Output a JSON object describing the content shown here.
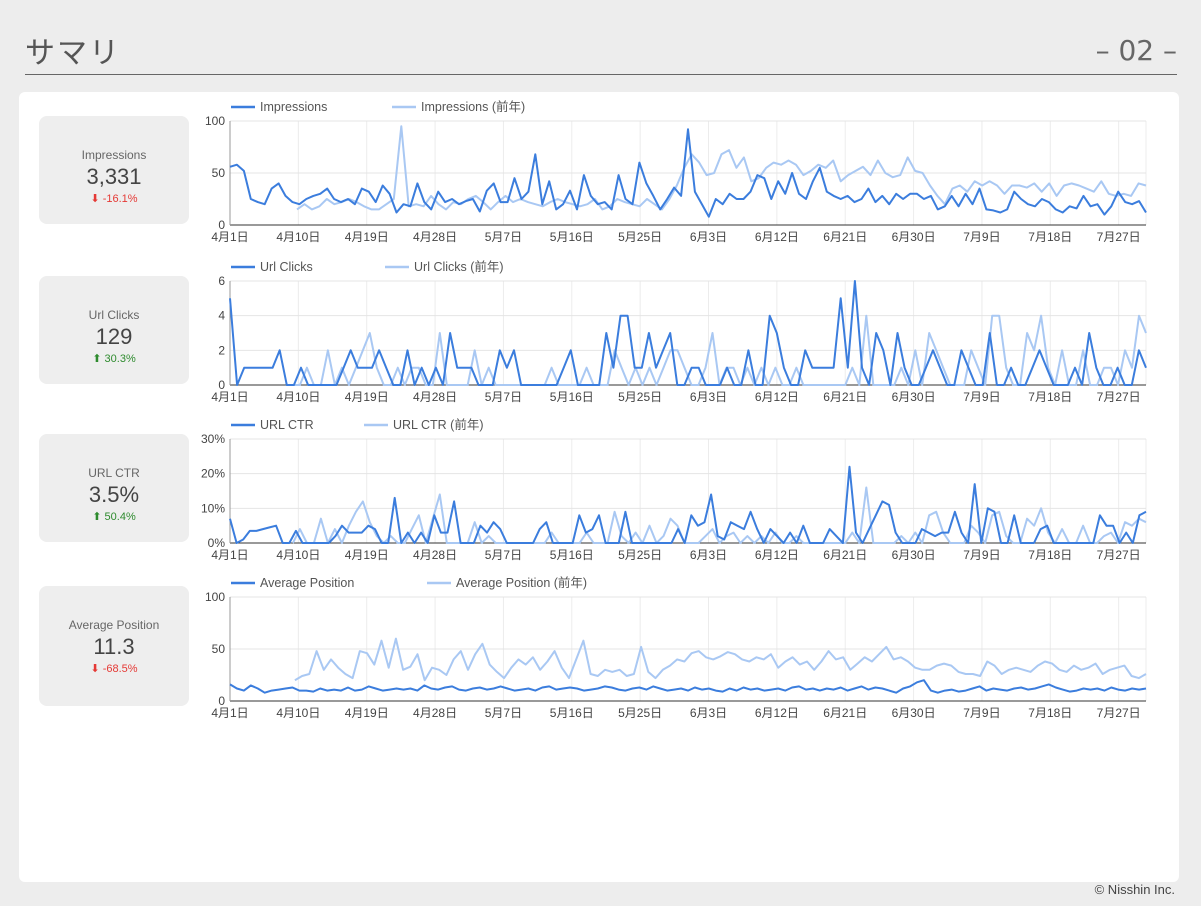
{
  "header": {
    "title": "サマリ",
    "page_number": "– 02 –"
  },
  "footer": {
    "copyright": "© Nisshin Inc."
  },
  "colors": {
    "current": "#3b7ddd",
    "previous": "#a9c8f3",
    "negative": "#e53935",
    "positive": "#2e8b2e"
  },
  "kpis": [
    {
      "label": "Impressions",
      "value": "3,331",
      "delta": "-16.1%",
      "direction": "down"
    },
    {
      "label": "Url Clicks",
      "value": "129",
      "delta": "30.3%",
      "direction": "up"
    },
    {
      "label": "URL CTR",
      "value": "3.5%",
      "delta": "50.4%",
      "direction": "up"
    },
    {
      "label": "Average Position",
      "value": "11.3",
      "delta": "-68.5%",
      "direction": "down"
    }
  ],
  "chart_data": [
    {
      "type": "line",
      "x_ticks": [
        "4月1日",
        "4月10日",
        "4月19日",
        "4月28日",
        "5月7日",
        "5月16日",
        "5月25日",
        "6月3日",
        "6月12日",
        "6月21日",
        "6月30日",
        "7月9日",
        "7月18日",
        "7月27日"
      ],
      "y_ticks": [
        "0",
        "50",
        "100"
      ],
      "ylim": [
        0,
        100
      ],
      "series": [
        {
          "name": "Impressions",
          "values": [
            56,
            58,
            52,
            25,
            22,
            20,
            35,
            40,
            28,
            22,
            20,
            25,
            28,
            30,
            35,
            25,
            22,
            25,
            20,
            35,
            32,
            22,
            38,
            30,
            12,
            20,
            18,
            40,
            22,
            15,
            32,
            22,
            25,
            20,
            23,
            25,
            13,
            33,
            40,
            22,
            22,
            45,
            25,
            32,
            68,
            20,
            42,
            15,
            20,
            33,
            15,
            48,
            28,
            20,
            22,
            15,
            48,
            25,
            20,
            60,
            40,
            28,
            15,
            25,
            36,
            28,
            92,
            32,
            20,
            8,
            25,
            20,
            30,
            25,
            25,
            32,
            48,
            45,
            25,
            42,
            30,
            50,
            30,
            25,
            42,
            55,
            32,
            28,
            25,
            28,
            22,
            25,
            35,
            22,
            28,
            20,
            30,
            25,
            30,
            30,
            25,
            28,
            15,
            18,
            28,
            18,
            30,
            20,
            35,
            15,
            14,
            12,
            15,
            32,
            25,
            20,
            18,
            25,
            22,
            15,
            12,
            18,
            16,
            28,
            18,
            20,
            10,
            18,
            32,
            22,
            20,
            23,
            12
          ]
        },
        {
          "name": "Impressions (前年)",
          "values": [
            null,
            null,
            null,
            null,
            null,
            null,
            null,
            null,
            null,
            15,
            20,
            15,
            18,
            25,
            20,
            22,
            25,
            22,
            18,
            15,
            15,
            20,
            25,
            95,
            18,
            20,
            18,
            28,
            20,
            15,
            22,
            20,
            25,
            28,
            22,
            15,
            22,
            28,
            22,
            25,
            22,
            20,
            18,
            22,
            25,
            22,
            20,
            18,
            20,
            25,
            15,
            18,
            25,
            22,
            20,
            18,
            25,
            20,
            15,
            25,
            38,
            55,
            68,
            60,
            48,
            50,
            68,
            72,
            55,
            65,
            42,
            45,
            55,
            60,
            58,
            62,
            58,
            48,
            52,
            58,
            55,
            62,
            42,
            48,
            52,
            56,
            48,
            62,
            50,
            46,
            48,
            65,
            52,
            50,
            38,
            28,
            20,
            35,
            38,
            32,
            42,
            38,
            42,
            38,
            30,
            38,
            38,
            36,
            40,
            32,
            40,
            28,
            38,
            40,
            38,
            35,
            32,
            42,
            30,
            28,
            30,
            28,
            40,
            38
          ]
        }
      ]
    },
    {
      "type": "line",
      "x_ticks": [
        "4月1日",
        "4月10日",
        "4月19日",
        "4月28日",
        "5月7日",
        "5月16日",
        "5月25日",
        "6月3日",
        "6月12日",
        "6月21日",
        "6月30日",
        "7月9日",
        "7月18日",
        "7月27日"
      ],
      "y_ticks": [
        "0",
        "2",
        "4",
        "6"
      ],
      "ylim": [
        0,
        6
      ],
      "series": [
        {
          "name": "Url Clicks",
          "values": [
            5,
            0,
            1,
            1,
            1,
            1,
            1,
            2,
            0,
            0,
            1,
            0,
            0,
            0,
            0,
            0,
            1,
            2,
            1,
            1,
            1,
            2,
            1,
            0,
            0,
            2,
            0,
            1,
            0,
            1,
            0,
            3,
            1,
            1,
            1,
            0,
            0,
            0,
            2,
            1,
            2,
            0,
            0,
            0,
            0,
            0,
            0,
            1,
            2,
            0,
            0,
            0,
            0,
            3,
            1,
            4,
            4,
            1,
            1,
            3,
            1,
            2,
            3,
            0,
            0,
            1,
            1,
            0,
            0,
            0,
            1,
            0,
            0,
            2,
            0,
            0,
            4,
            3,
            1,
            0,
            0,
            2,
            1,
            1,
            1,
            1,
            5,
            1,
            6,
            1,
            0,
            3,
            2,
            0,
            3,
            1,
            0,
            0,
            1,
            2,
            1,
            0,
            0,
            2,
            1,
            0,
            0,
            3,
            0,
            0,
            1,
            0,
            0,
            1,
            2,
            1,
            0,
            0,
            0,
            1,
            0,
            3,
            1,
            0,
            0,
            1,
            0,
            0,
            2,
            1
          ]
        },
        {
          "name": "Url Clicks (前年)",
          "values": [
            null,
            null,
            null,
            null,
            null,
            null,
            null,
            null,
            null,
            0,
            0,
            1,
            0,
            0,
            2,
            0,
            1,
            0,
            1,
            2,
            3,
            1,
            0,
            0,
            1,
            0,
            1,
            1,
            0,
            0,
            3,
            0,
            0,
            0,
            0,
            2,
            0,
            1,
            0,
            0,
            0,
            0,
            0,
            0,
            0,
            0,
            1,
            0,
            0,
            0,
            0,
            1,
            0,
            0,
            0,
            2,
            1,
            0,
            1,
            0,
            1,
            0,
            1,
            2,
            2,
            1,
            0,
            0,
            1,
            3,
            0,
            1,
            1,
            0,
            1,
            0,
            1,
            0,
            1,
            0,
            0,
            1,
            0,
            0,
            0,
            0,
            0,
            0,
            0,
            1,
            0,
            4,
            0,
            0,
            0,
            0,
            1,
            0,
            2,
            0,
            3,
            2,
            1,
            0,
            0,
            0,
            2,
            1,
            0,
            4,
            4,
            1,
            0,
            0,
            3,
            2,
            4,
            1,
            0,
            2,
            0,
            0,
            2,
            0,
            0,
            1,
            1,
            0,
            2,
            1,
            4,
            3
          ]
        }
      ]
    },
    {
      "type": "line",
      "x_ticks": [
        "4月1日",
        "4月10日",
        "4月19日",
        "4月28日",
        "5月7日",
        "5月16日",
        "5月25日",
        "6月3日",
        "6月12日",
        "6月21日",
        "6月30日",
        "7月9日",
        "7月18日",
        "7月27日"
      ],
      "y_ticks": [
        "0%",
        "10%",
        "20%",
        "30%"
      ],
      "ylim": [
        0,
        30
      ],
      "series": [
        {
          "name": "URL CTR",
          "values": [
            7,
            0,
            1,
            3.5,
            3.5,
            4,
            4.5,
            5,
            0,
            0,
            3.5,
            0,
            0,
            0,
            0,
            0,
            2,
            5,
            3,
            3,
            3,
            5,
            4,
            0,
            0,
            13,
            0,
            3,
            0,
            3,
            0,
            8,
            3,
            3,
            12,
            0,
            0,
            0,
            5,
            3,
            6,
            4,
            0,
            0,
            0,
            0,
            0,
            4,
            6,
            0,
            0,
            0,
            0,
            8,
            3,
            4,
            8,
            0,
            0,
            0,
            9,
            0,
            0,
            0,
            0,
            0,
            0,
            0,
            4,
            0,
            8,
            5,
            6,
            14,
            2,
            1,
            6,
            5,
            4,
            9,
            4,
            0,
            4,
            2,
            0,
            3,
            0,
            5,
            0,
            0,
            0,
            4,
            2,
            0,
            22,
            3,
            0,
            4,
            8,
            12,
            11,
            3,
            0,
            0,
            0,
            4,
            3,
            2,
            3,
            3,
            9,
            3,
            0,
            17,
            0,
            10,
            9,
            0,
            0,
            8,
            0,
            0,
            0,
            4,
            5,
            0,
            0,
            0,
            0,
            0,
            0,
            0,
            8,
            5,
            5,
            0,
            3,
            0,
            8,
            9
          ]
        },
        {
          "name": "URL CTR (前年)",
          "values": [
            null,
            null,
            null,
            null,
            null,
            null,
            null,
            null,
            null,
            0,
            4,
            0,
            0,
            7,
            0,
            4,
            0,
            5,
            9,
            12,
            6,
            2,
            0,
            2,
            0,
            0,
            4,
            8,
            0,
            7,
            14,
            0,
            0,
            0,
            0,
            6,
            0,
            2,
            0,
            0,
            0,
            0,
            0,
            0,
            0,
            0,
            3,
            0,
            0,
            0,
            0,
            3,
            0,
            0,
            0,
            9,
            2,
            0,
            3,
            0,
            5,
            0,
            2,
            7,
            5,
            0,
            0,
            0,
            2,
            4,
            0,
            2,
            3,
            0,
            2,
            0,
            2,
            0,
            3,
            0,
            0,
            2,
            0,
            0,
            0,
            0,
            0,
            0,
            0,
            3,
            0,
            16,
            0,
            0,
            0,
            0,
            2,
            0,
            3,
            0,
            8,
            9,
            3,
            0,
            0,
            0,
            5,
            3,
            0,
            8,
            9,
            2,
            0,
            0,
            7,
            5,
            10,
            3,
            0,
            4,
            0,
            0,
            5,
            0,
            0,
            2,
            3,
            0,
            6,
            5,
            7,
            6
          ]
        }
      ]
    },
    {
      "type": "line",
      "x_ticks": [
        "4月1日",
        "4月10日",
        "4月19日",
        "4月28日",
        "5月7日",
        "5月16日",
        "5月25日",
        "6月3日",
        "6月12日",
        "6月21日",
        "6月30日",
        "7月9日",
        "7月18日",
        "7月27日"
      ],
      "y_ticks": [
        "0",
        "50",
        "100"
      ],
      "ylim": [
        0,
        100
      ],
      "series": [
        {
          "name": "Average Position",
          "values": [
            16,
            12,
            10,
            15,
            12,
            8,
            10,
            11,
            12,
            13,
            10,
            10,
            9,
            12,
            10,
            11,
            10,
            13,
            10,
            11,
            14,
            12,
            10,
            11,
            12,
            11,
            12,
            10,
            15,
            12,
            11,
            13,
            14,
            11,
            10,
            12,
            13,
            11,
            12,
            14,
            12,
            10,
            11,
            12,
            10,
            13,
            14,
            11,
            12,
            13,
            12,
            10,
            11,
            12,
            14,
            13,
            11,
            10,
            12,
            13,
            11,
            14,
            12,
            10,
            11,
            12,
            10,
            13,
            11,
            12,
            10,
            9,
            12,
            10,
            13,
            11,
            12,
            10,
            11,
            12,
            10,
            13,
            14,
            11,
            12,
            10,
            12,
            11,
            13,
            10,
            12,
            14,
            11,
            13,
            12,
            10,
            8,
            12,
            14,
            18,
            20,
            10,
            8,
            10,
            11,
            9,
            10,
            12,
            14,
            10,
            12,
            11,
            10,
            12,
            13,
            11,
            12,
            14,
            16,
            13,
            11,
            9,
            10,
            12,
            11,
            12,
            10,
            13,
            11,
            10,
            12,
            11,
            12
          ]
        },
        {
          "name": "Average Position (前年)",
          "values": [
            null,
            null,
            null,
            null,
            null,
            null,
            null,
            null,
            null,
            20,
            24,
            26,
            48,
            30,
            40,
            32,
            26,
            22,
            48,
            46,
            35,
            58,
            32,
            60,
            30,
            33,
            45,
            20,
            32,
            30,
            25,
            40,
            48,
            30,
            45,
            55,
            35,
            28,
            22,
            32,
            40,
            35,
            42,
            30,
            38,
            48,
            32,
            22,
            40,
            58,
            26,
            24,
            30,
            28,
            30,
            24,
            26,
            52,
            28,
            22,
            30,
            34,
            40,
            38,
            46,
            48,
            42,
            40,
            43,
            47,
            45,
            40,
            38,
            42,
            40,
            45,
            32,
            38,
            42,
            35,
            38,
            30,
            38,
            48,
            40,
            42,
            30,
            36,
            42,
            38,
            45,
            52,
            40,
            42,
            38,
            32,
            30,
            30,
            34,
            36,
            34,
            28,
            26,
            26,
            24,
            38,
            34,
            26,
            30,
            32,
            30,
            28,
            34,
            38,
            36,
            30,
            28,
            34,
            30,
            32,
            36,
            26,
            30,
            32,
            34,
            24,
            22,
            26
          ]
        }
      ]
    }
  ]
}
